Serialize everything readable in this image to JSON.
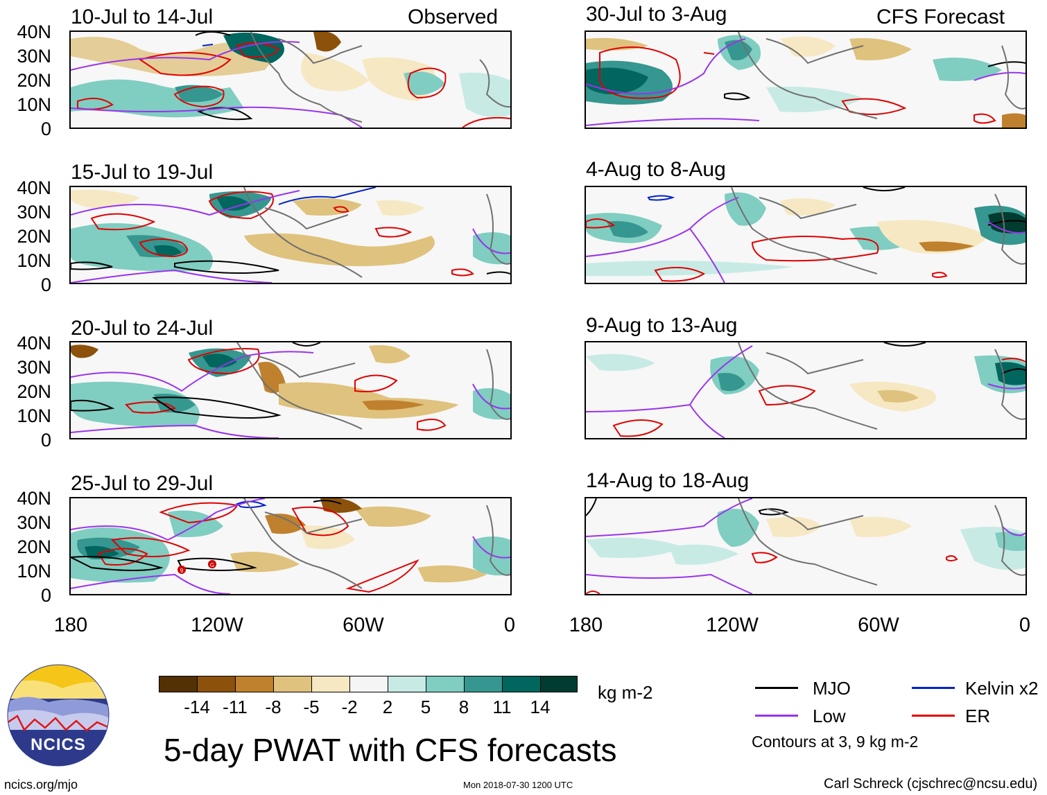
{
  "colors": {
    "mjo": "#000000",
    "low": "#9933ee",
    "kelvin": "#0022cc",
    "er": "#e00000",
    "coast": "#707070",
    "logo_circle": "#2d3a8c"
  },
  "panels": [
    {
      "id": "p1",
      "title": "10-Jul to 14-Jul",
      "tag": "Observed"
    },
    {
      "id": "p2",
      "title": "30-Jul to 3-Aug",
      "tag": "CFS Forecast"
    },
    {
      "id": "p3",
      "title": "15-Jul to 19-Jul",
      "tag": ""
    },
    {
      "id": "p4",
      "title": "4-Aug to 8-Aug",
      "tag": ""
    },
    {
      "id": "p5",
      "title": "20-Jul to 24-Jul",
      "tag": ""
    },
    {
      "id": "p6",
      "title": "9-Aug to 13-Aug",
      "tag": ""
    },
    {
      "id": "p7",
      "title": "25-Jul to 29-Jul",
      "tag": ""
    },
    {
      "id": "p8",
      "title": "14-Aug to 18-Aug",
      "tag": ""
    }
  ],
  "lat_labels": [
    "40N",
    "30N",
    "20N",
    "10N",
    "0"
  ],
  "lon_labels": [
    "180",
    "120W",
    "60W",
    "0"
  ],
  "colorbar": {
    "colors": [
      "#543005",
      "#8c510a",
      "#bf812d",
      "#dfc27d",
      "#f6e8c3",
      "#f5f5f5",
      "#c7eae5",
      "#80cdc1",
      "#35978f",
      "#01665e",
      "#003c30"
    ],
    "labels": [
      "-14",
      "-11",
      "-8",
      "-5",
      "-2",
      "2",
      "5",
      "8",
      "11",
      "14"
    ],
    "unit": "kg m-2"
  },
  "legend": {
    "mjo": "MJO",
    "kelvin": "Kelvin x2",
    "low": "Low",
    "er": "ER",
    "note": "Contours at 3, 9 kg m-2"
  },
  "main_title": "5-day PWAT with CFS forecasts",
  "logo_text": "NCICS",
  "storm_markers": [
    "9",
    "G"
  ],
  "footer": {
    "left": "ncics.org/mjo",
    "center": "Mon 2018-07-30 1200 UTC",
    "right": "Carl Schreck (cjschrec@ncsu.edu)"
  }
}
